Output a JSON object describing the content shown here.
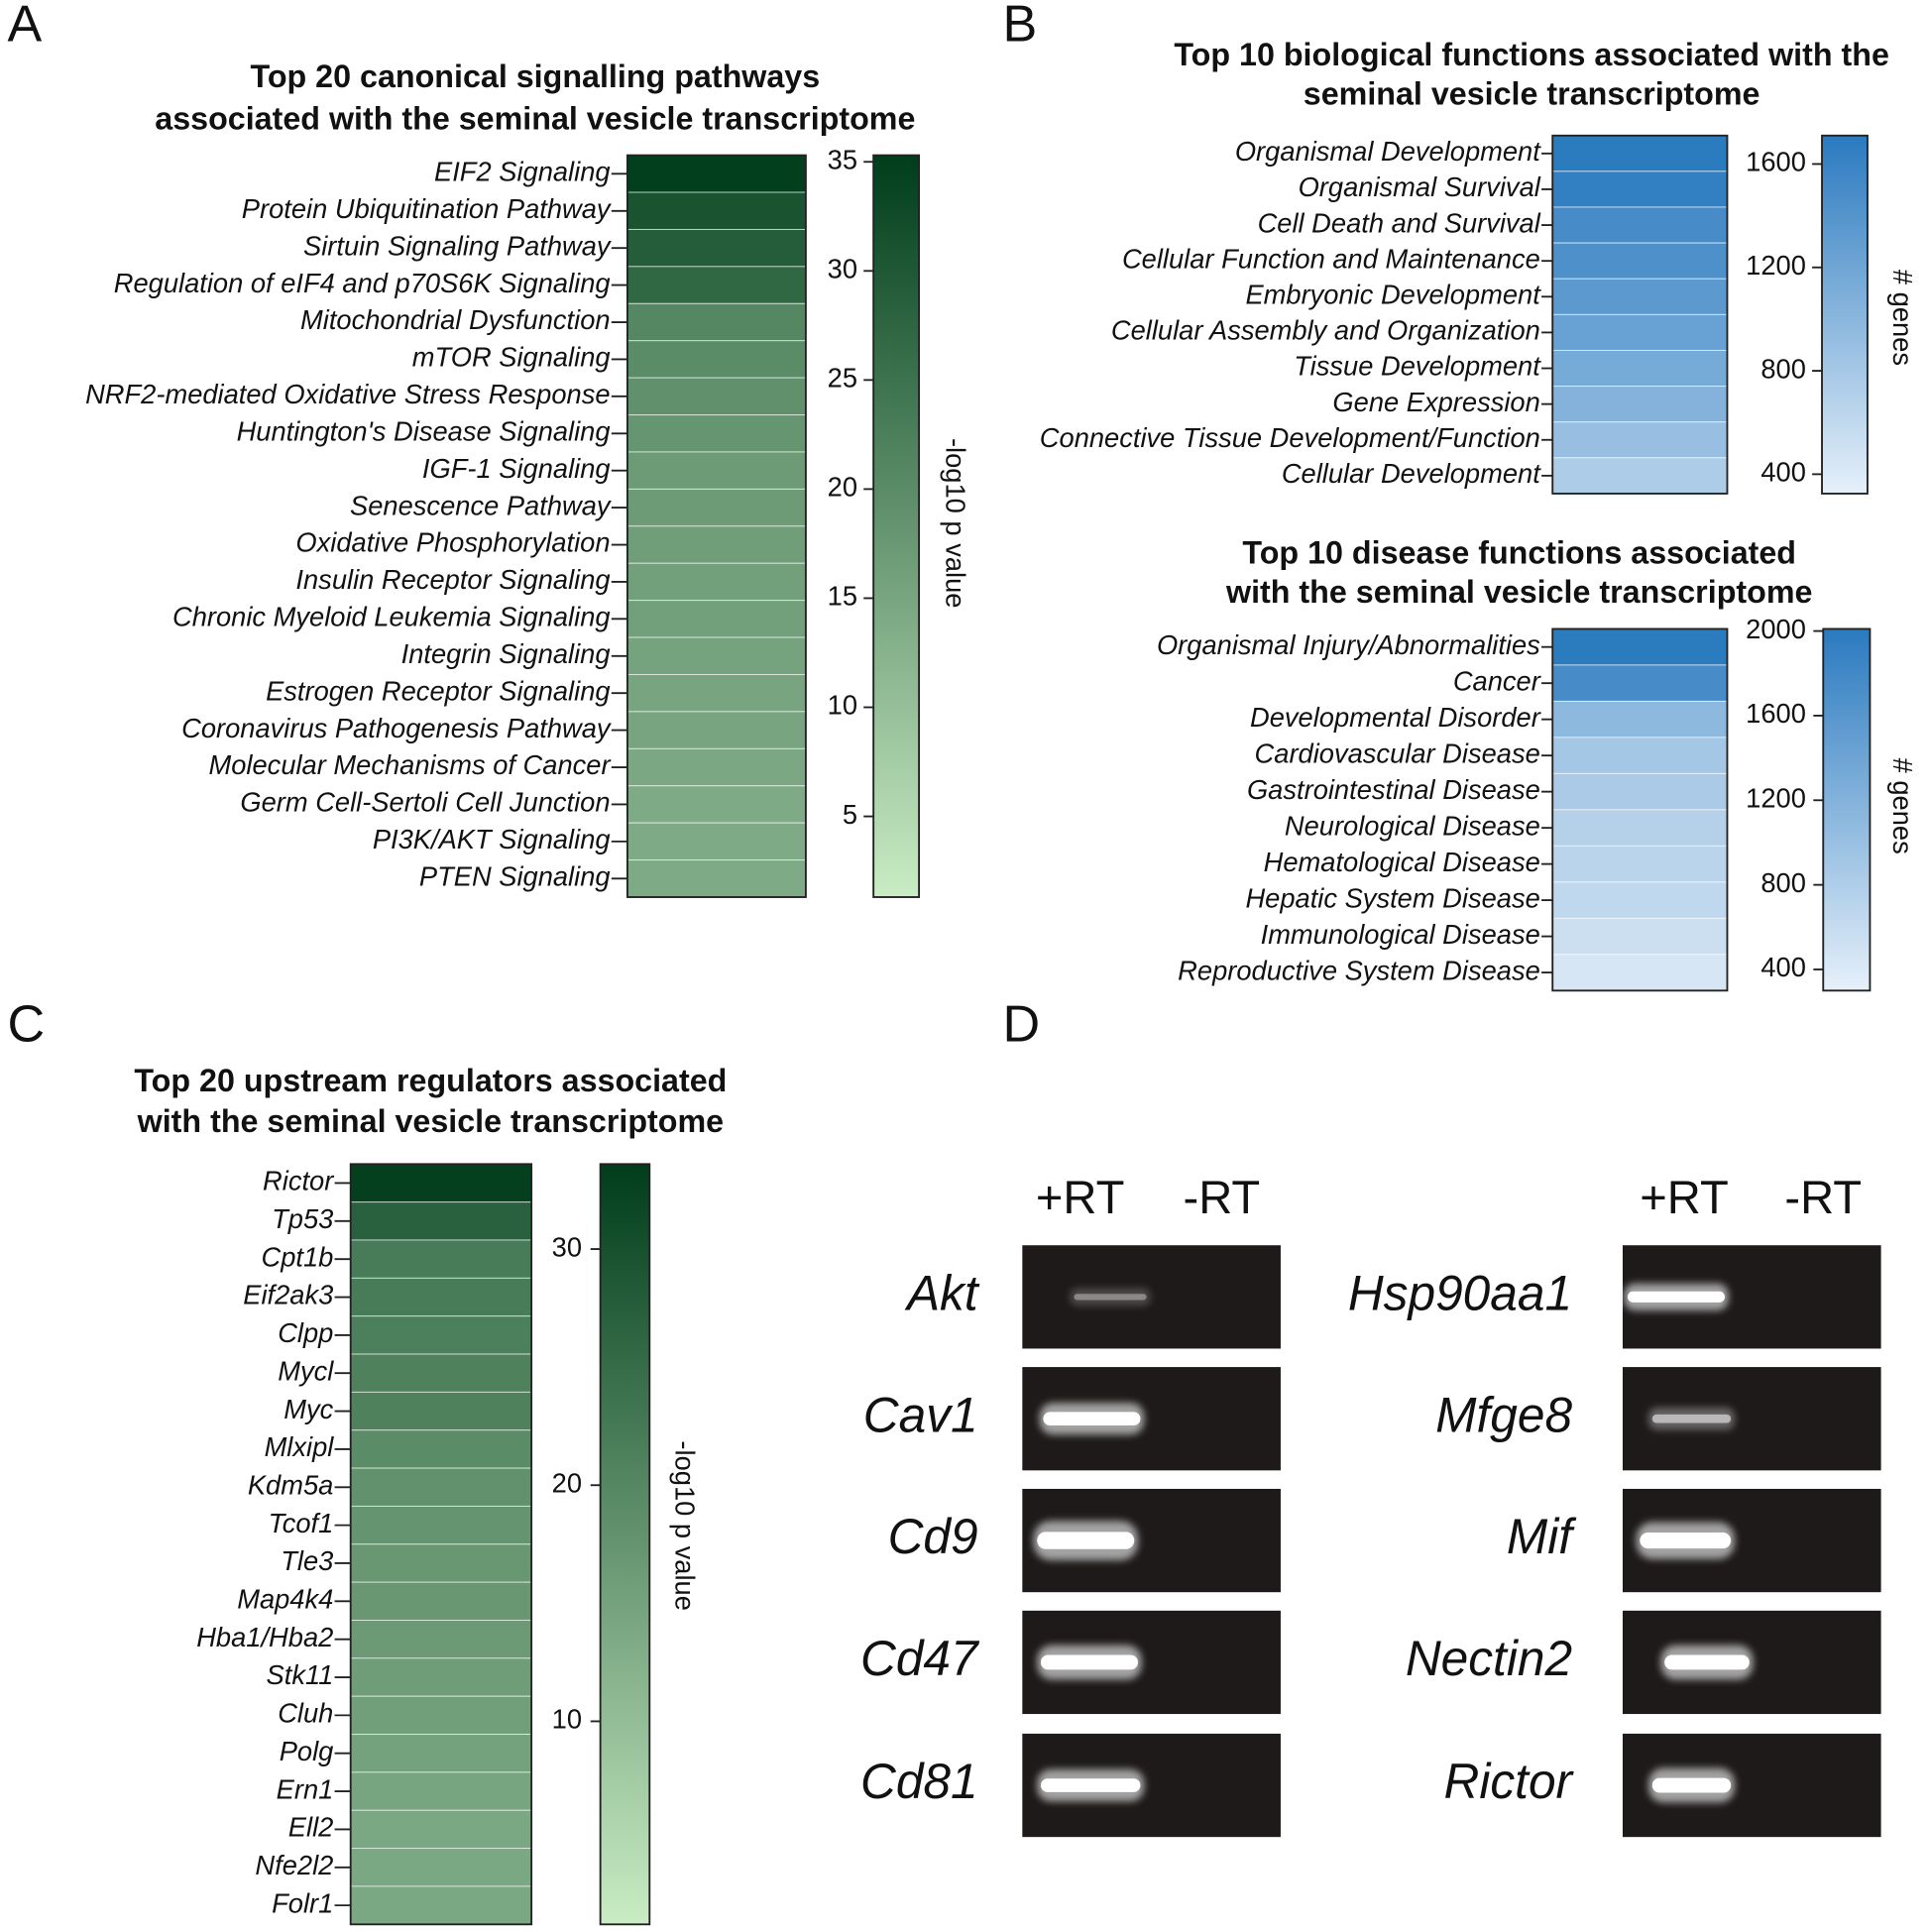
{
  "panels": [
    "A",
    "B",
    "C",
    "D"
  ],
  "chart_data": [
    {
      "type": "heatmap",
      "title": [
        "Top 20 canonical  signalling pathways",
        "associated with the seminal vesicle transcriptome"
      ],
      "categories": [
        "EIF2 Signaling",
        "Protein Ubiquitination Pathway",
        "Sirtuin Signaling Pathway",
        "Regulation of eIF4 and p70S6K Signaling",
        "Mitochondrial Dysfunction",
        "mTOR Signaling",
        "NRF2-mediated Oxidative Stress Response",
        "Huntington's Disease Signaling",
        "IGF-1 Signaling",
        "Senescence Pathway",
        "Oxidative Phosphorylation",
        "Insulin Receptor Signaling",
        "Chronic Myeloid Leukemia Signaling",
        "Integrin Signaling",
        "Estrogen Receptor Signaling",
        "Coronavirus Pathogenesis Pathway",
        "Molecular Mechanisms of Cancer",
        "Germ Cell-Sertoli Cell Junction",
        "PI3K/AKT Signaling",
        "PTEN Signaling"
      ],
      "values": [
        35,
        31,
        29,
        27,
        21,
        20,
        19,
        18,
        17,
        17,
        16.5,
        16,
        16,
        15.5,
        15,
        15,
        14.5,
        14,
        14,
        14
      ],
      "colorbar": {
        "label": "-log10 p value",
        "lim": [
          1.3,
          35.3
        ],
        "ticks": [
          5,
          10,
          15,
          20,
          25,
          30,
          35
        ],
        "colors": [
          "#c9ecc4",
          "#003d1b"
        ]
      }
    },
    {
      "type": "heatmap",
      "title": [
        "Top 10 biological functions associated with the",
        "seminal vesicle transcriptome"
      ],
      "categories": [
        "Organismal Development",
        "Organismal Survival",
        "Cell Death and Survival",
        "Cellular Function and Maintenance",
        "Embryonic Development",
        "Cellular Assembly and Organization",
        "Tissue Development",
        "Gene Expression",
        "Connective Tissue Development/Function",
        "Cellular Development"
      ],
      "values": [
        1700,
        1650,
        1500,
        1450,
        1350,
        1250,
        1150,
        1050,
        900,
        750
      ],
      "colorbar": {
        "label": "# genes",
        "lim": [
          325,
          1710
        ],
        "ticks": [
          400,
          800,
          1200,
          1600
        ],
        "colors": [
          "#e6f0fa",
          "#2a7abf"
        ]
      }
    },
    {
      "type": "heatmap",
      "title": [
        "Top 10 disease functions associated",
        "with the seminal vesicle transcriptome"
      ],
      "categories": [
        "Organismal Injury/Abnormalities",
        "Cancer",
        "Developmental Disorder",
        "Cardiovascular Disease",
        "Gastrointestinal Disease",
        "Neurological Disease",
        "Hematological Disease",
        "Hepatic System Disease",
        "Immunological Disease",
        "Reproductive System Disease"
      ],
      "values": [
        2000,
        1750,
        1100,
        900,
        850,
        750,
        700,
        650,
        550,
        450
      ],
      "colorbar": {
        "label": "# genes",
        "lim": [
          300,
          2010
        ],
        "ticks": [
          400,
          800,
          1200,
          1600,
          2000
        ],
        "colors": [
          "#e6f0fa",
          "#2a7abf"
        ]
      }
    },
    {
      "type": "heatmap",
      "title": [
        "Top 20 upstream regulators associated",
        "with the seminal vesicle transcriptome"
      ],
      "categories": [
        "Rictor",
        "Tp53",
        "Cpt1b",
        "Eif2ak3",
        "Clpp",
        "Mycl",
        "Myc",
        "Mlxipl",
        "Kdm5a",
        "Tcof1",
        "Tle3",
        "Map4k4",
        "Hba1/Hba2",
        "Stk11",
        "Cluh",
        "Polg",
        "Ern1",
        "Ell2",
        "Nfe2l2",
        "Folr1"
      ],
      "values": [
        33,
        27,
        22,
        22,
        21.5,
        21,
        21,
        19,
        18,
        17.5,
        17,
        17,
        16.5,
        16,
        15.5,
        15,
        14.5,
        14,
        14,
        14
      ],
      "colorbar": {
        "label": "-log10 p value",
        "lim": [
          1.4,
          33.6
        ],
        "ticks": [
          10,
          20,
          30
        ],
        "colors": [
          "#c9ecc4",
          "#003d1b"
        ]
      }
    }
  ],
  "gel": [
    {
      "lanes": [
        "+RT",
        "-RT"
      ],
      "genes": [
        "Akt",
        "Cav1",
        "Cd9",
        "Cd47",
        "Cd81"
      ]
    },
    {
      "lanes": [
        "+RT",
        "-RT"
      ],
      "genes": [
        "Hsp90aa1",
        "Mfge8",
        "Mif",
        "Nectin2",
        "Rictor"
      ]
    }
  ]
}
